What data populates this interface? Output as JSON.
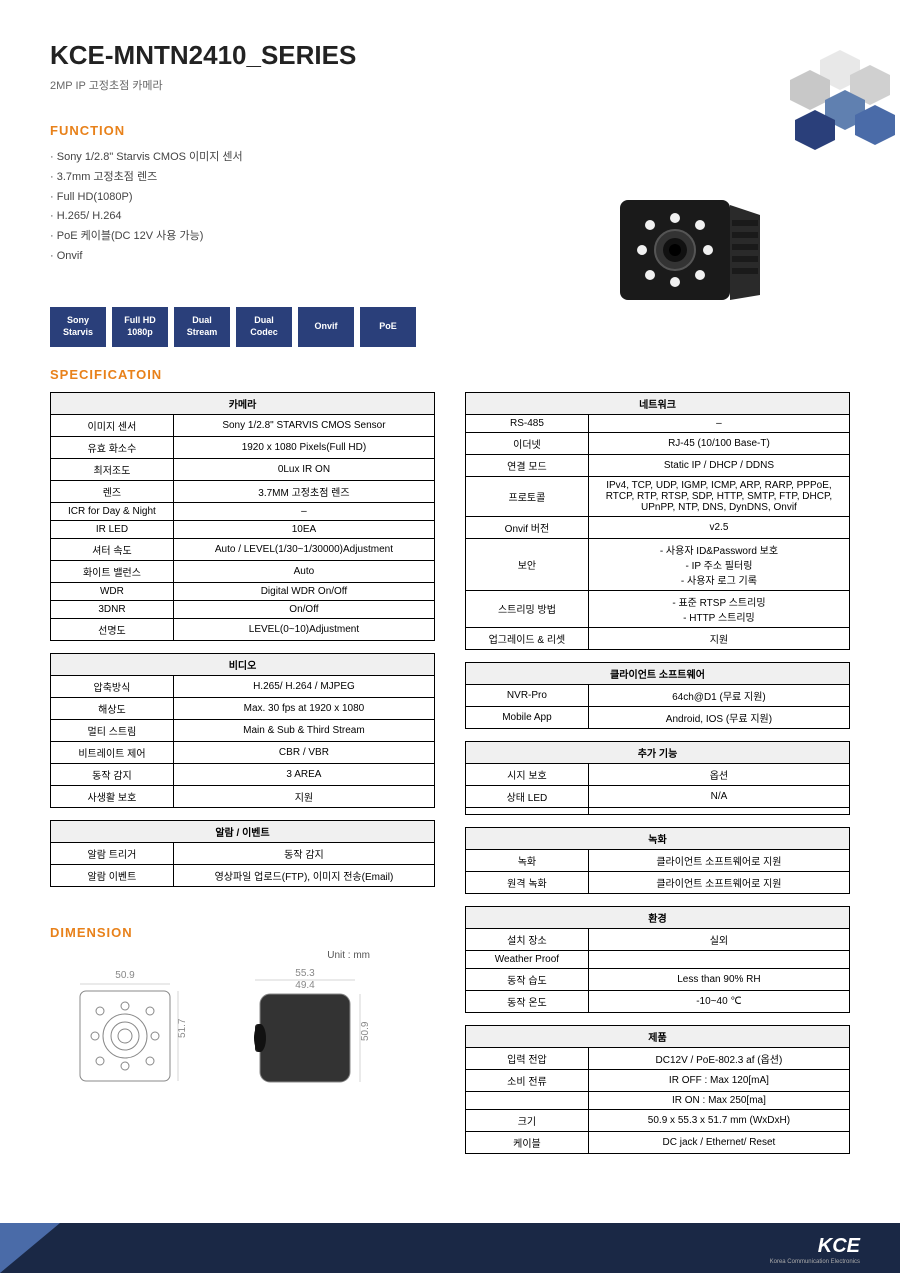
{
  "header": {
    "title": "KCE-MNTN2410_SERIES",
    "subtitle": "2MP IP  고정초점  카메라"
  },
  "sections": {
    "function": "FUNCTION",
    "spec": "SPECIFICATOIN",
    "dimension": "DIMENSION"
  },
  "function_items": [
    "Sony 1/2.8\" Starvis CMOS 이미지 센서",
    "3.7mm 고정초점 렌즈",
    "Full HD(1080P)",
    "H.265/ H.264",
    "PoE 케이블(DC 12V 사용 가능)",
    "Onvif"
  ],
  "badges": [
    {
      "l1": "Sony",
      "l2": "Starvis"
    },
    {
      "l1": "Full HD",
      "l2": "1080p"
    },
    {
      "l1": "Dual",
      "l2": "Stream"
    },
    {
      "l1": "Dual",
      "l2": "Codec"
    },
    {
      "l1": "Onvif",
      "l2": ""
    },
    {
      "l1": "PoE",
      "l2": ""
    }
  ],
  "tables_left": [
    {
      "title": "카메라",
      "rows": [
        [
          "이미지 센서",
          "Sony 1/2.8\"  STARVIS CMOS Sensor"
        ],
        [
          "유효 화소수",
          "1920 x 1080 Pixels(Full HD)"
        ],
        [
          "최저조도",
          "0Lux IR ON"
        ],
        [
          "렌즈",
          "3.7MM 고정초점 렌즈"
        ],
        [
          "ICR for Day & Night",
          "–"
        ],
        [
          "IR LED",
          "10EA"
        ],
        [
          "셔터 속도",
          "Auto / LEVEL(1/30~1/30000)Adjustment"
        ],
        [
          "화이트 밸런스",
          "Auto"
        ],
        [
          "WDR",
          "Digital WDR On/Off"
        ],
        [
          "3DNR",
          "On/Off"
        ],
        [
          "선명도",
          "LEVEL(0~10)Adjustment"
        ]
      ]
    },
    {
      "title": "비디오",
      "rows": [
        [
          "압축방식",
          "H.265/ H.264 / MJPEG"
        ],
        [
          "해상도",
          "Max. 30 fps at 1920 x 1080"
        ],
        [
          "멀티 스트림",
          "Main & Sub & Third Stream"
        ],
        [
          "비트레이트 제어",
          "CBR / VBR"
        ],
        [
          "동작 감지",
          "3 AREA"
        ],
        [
          "사생활 보호",
          "지원"
        ]
      ]
    },
    {
      "title": "알람 / 이벤트",
      "rows": [
        [
          "알람 트리거",
          "동작 감지"
        ],
        [
          "알람 이벤트",
          "영상파일 업로드(FTP), 이미지 전송(Email)"
        ]
      ]
    }
  ],
  "tables_right": [
    {
      "title": "네트워크",
      "rows": [
        [
          "RS-485",
          "–"
        ],
        [
          "이더넷",
          "RJ-45 (10/100 Base-T)"
        ],
        [
          "연결 모드",
          "Static IP / DHCP / DDNS"
        ],
        [
          "프로토콜",
          "IPv4, TCP, UDP, IGMP, ICMP, ARP, RARP, PPPoE, RTCP, RTP, RTSP, SDP, HTTP, SMTP, FTP, DHCP, UPnPP, NTP, DNS, DynDNS, Onvif"
        ],
        [
          "Onvif 버전",
          "v2.5"
        ],
        [
          "보안",
          "- 사용자 ID&Password 보호\n- IP 주소 필터링\n- 사용자 로그 기록"
        ],
        [
          "스트리밍 방법",
          "- 표준 RTSP 스트리밍\n- HTTP 스트리밍"
        ],
        [
          "업그레이드 & 리셋",
          "지원"
        ]
      ]
    },
    {
      "title": "클라이언트 소프트웨어",
      "rows": [
        [
          "NVR-Pro",
          "64ch@D1 (무료 지원)"
        ],
        [
          "Mobile App",
          "Android, IOS (무료 지원)"
        ]
      ]
    },
    {
      "title": "추가 기능",
      "rows": [
        [
          "시지 보호",
          "옵션"
        ],
        [
          "상태 LED",
          "N/A"
        ],
        [
          "",
          ""
        ]
      ]
    },
    {
      "title": "녹화",
      "rows": [
        [
          "녹화",
          "클라이언트 소프트웨어로 지원"
        ],
        [
          "원격 녹화",
          "클라이언트 소프트웨어로 지원"
        ]
      ]
    },
    {
      "title": "환경",
      "rows": [
        [
          "설치 장소",
          "실외"
        ],
        [
          "Weather Proof",
          ""
        ],
        [
          "동작 습도",
          "Less than 90% RH"
        ],
        [
          "동작 온도",
          "-10~40 ℃"
        ]
      ]
    },
    {
      "title": "제품",
      "rows": [
        [
          "입력 전압",
          "DC12V / PoE-802.3 af (옵션)"
        ],
        [
          "소비 전류",
          "IR OFF : Max 120[mA]"
        ],
        [
          "",
          "IR ON : Max 250[ma]"
        ],
        [
          "크기",
          "50.9 x 55.3 x 51.7 mm (WxDxH)"
        ],
        [
          "케이블",
          "DC jack / Ethernet/ Reset"
        ]
      ]
    }
  ],
  "dimension": {
    "unit": "Unit : mm",
    "front_w": "50.9",
    "side_w": "55.3",
    "side_inner": "49.4",
    "front_h": "51.7",
    "side_h": "50.9"
  },
  "footer": {
    "logo": "KCE",
    "sub": "Korea Communication Electronics"
  },
  "colors": {
    "accent": "#e8811a",
    "badge_bg": "#2a3f7a",
    "footer_bg": "#1a2845",
    "footer_accent": "#4a6ba8"
  }
}
